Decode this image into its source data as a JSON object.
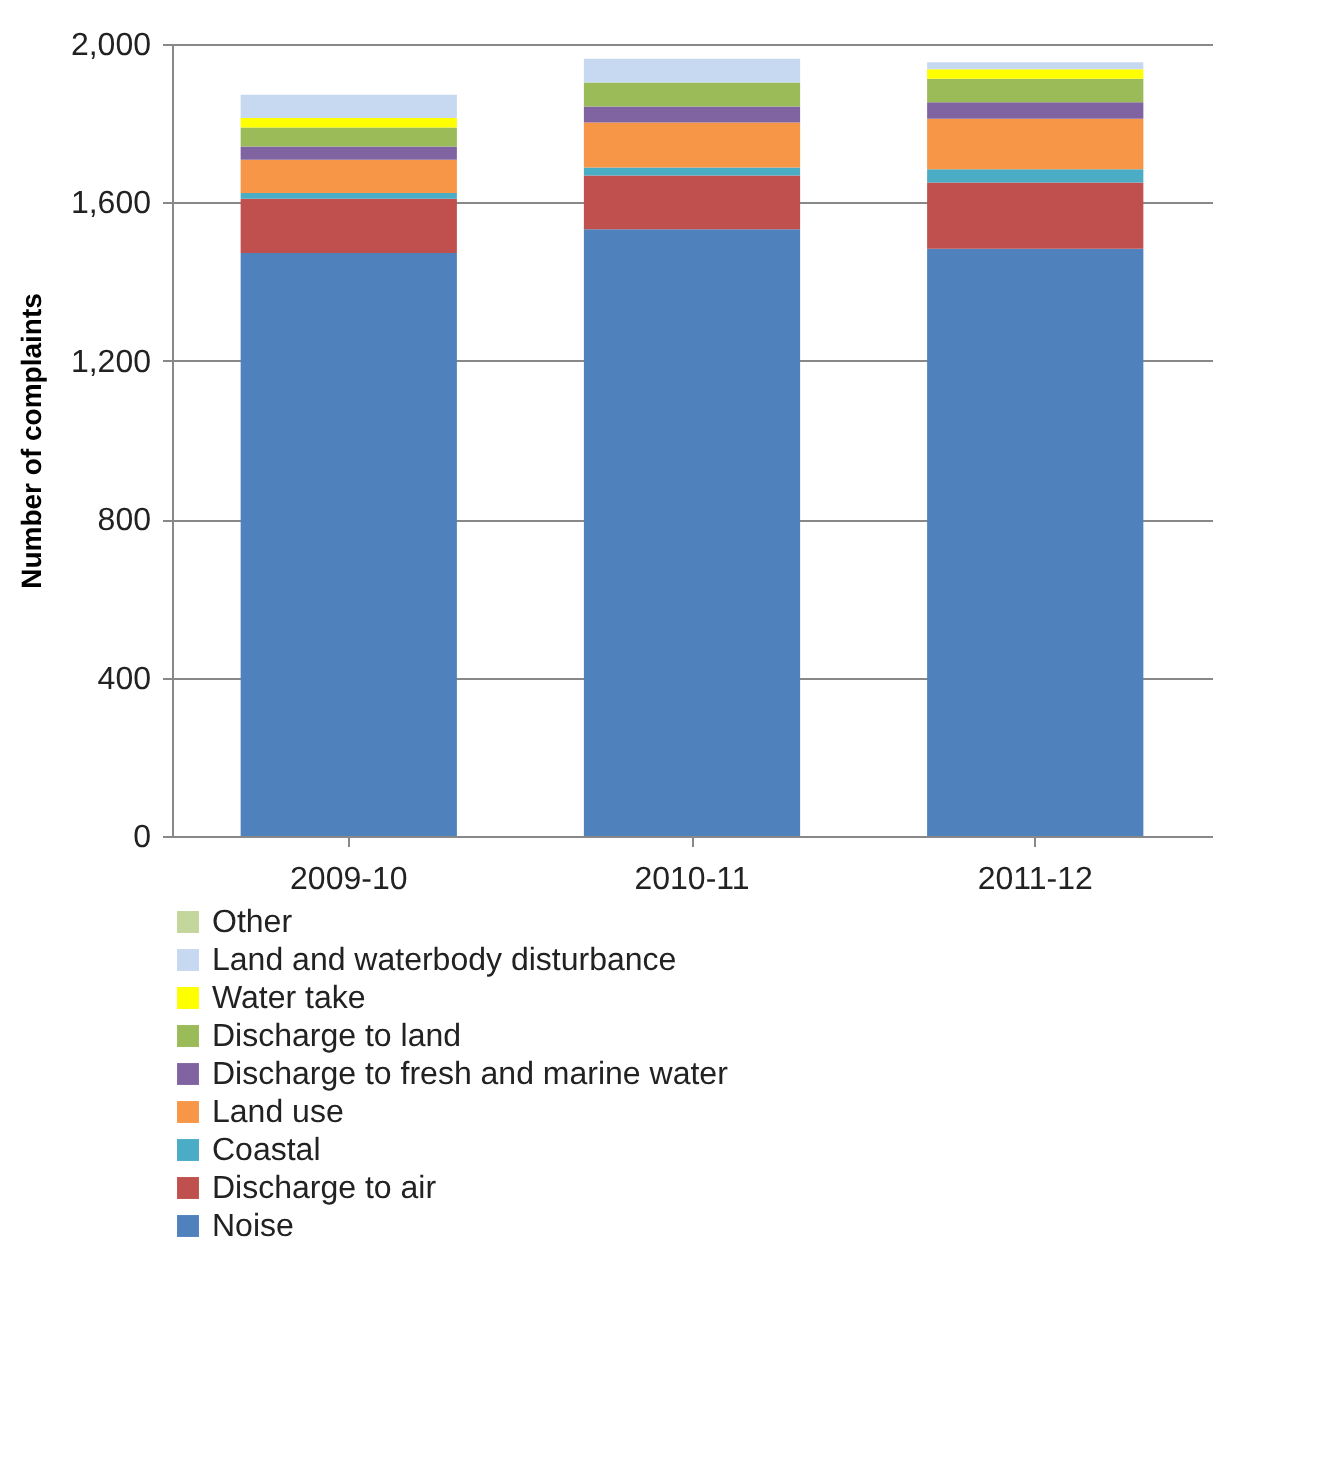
{
  "chart_data": {
    "type": "bar",
    "ylabel": "Number of complaints",
    "categories": [
      "2009-10",
      "2010-11",
      "2011-12"
    ],
    "stacked": true,
    "ylim": [
      0,
      2000
    ],
    "yticks": [
      {
        "value": 0,
        "label": "0"
      },
      {
        "value": 400,
        "label": "400"
      },
      {
        "value": 800,
        "label": "800"
      },
      {
        "value": 1200,
        "label": "1,200"
      },
      {
        "value": 1600,
        "label": "1,600"
      },
      {
        "value": 2000,
        "label": "2,000"
      }
    ],
    "grid": "y",
    "legend": "bottom",
    "series": [
      {
        "name": "Noise",
        "color": "#4f81bd",
        "values": [
          1472,
          1532,
          1483
        ]
      },
      {
        "name": "Discharge to air",
        "color": "#c0504d",
        "values": [
          137,
          136,
          167
        ]
      },
      {
        "name": "Coastal",
        "color": "#4bacc6",
        "values": [
          15,
          20,
          34
        ]
      },
      {
        "name": "Land use",
        "color": "#f79646",
        "values": [
          84,
          114,
          127
        ]
      },
      {
        "name": "Discharge to fresh and marine water",
        "color": "#8064a2",
        "values": [
          33,
          40,
          42
        ]
      },
      {
        "name": "Discharge to land",
        "color": "#9bbb59",
        "values": [
          48,
          61,
          59
        ]
      },
      {
        "name": "Water take",
        "color": "#ffff00",
        "values": [
          24,
          0,
          24
        ]
      },
      {
        "name": "Land and waterbody disturbance",
        "color": "#c6d9f1",
        "values": [
          59,
          60,
          18
        ]
      },
      {
        "name": "Other",
        "color": "#c3d69b",
        "values": [
          0,
          0,
          0
        ]
      }
    ]
  }
}
